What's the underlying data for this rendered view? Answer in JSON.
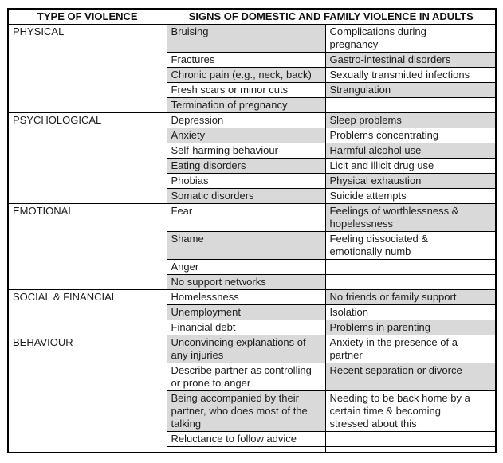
{
  "colors": {
    "shaded_cell": "#d9d9d9",
    "border": "#000000",
    "background": "#ffffff",
    "text": "#1d1d1d"
  },
  "header": {
    "type_col": "TYPE OF VIOLENCE",
    "signs_col": "SIGNS OF DOMESTIC AND FAMILY VIOLENCE IN ADULTS"
  },
  "sections": [
    {
      "type": "PHYSICAL",
      "rows": [
        {
          "sign1": "Bruising",
          "sign1_shaded": true,
          "sign2": "Complications during\npregnancy",
          "sign2_shaded": false
        },
        {
          "sign1": "Fractures",
          "sign1_shaded": false,
          "sign2": "Gastro-intestinal disorders",
          "sign2_shaded": true
        },
        {
          "sign1": "Chronic pain (e.g., neck, back)",
          "sign1_shaded": true,
          "sign2": "Sexually transmitted infections",
          "sign2_shaded": false
        },
        {
          "sign1": "Fresh scars or minor cuts",
          "sign1_shaded": false,
          "sign2": "Strangulation",
          "sign2_shaded": true
        },
        {
          "sign1": "Termination of pregnancy",
          "sign1_shaded": true,
          "sign2": "",
          "sign2_shaded": false
        }
      ]
    },
    {
      "type": "PSYCHOLOGICAL",
      "rows": [
        {
          "sign1": "Depression",
          "sign1_shaded": false,
          "sign2": "Sleep problems",
          "sign2_shaded": true
        },
        {
          "sign1": "Anxiety",
          "sign1_shaded": true,
          "sign2": "Problems concentrating",
          "sign2_shaded": false
        },
        {
          "sign1": "Self-harming behaviour",
          "sign1_shaded": false,
          "sign2": "Harmful alcohol use",
          "sign2_shaded": true
        },
        {
          "sign1": "Eating disorders",
          "sign1_shaded": true,
          "sign2": "Licit and illicit drug use",
          "sign2_shaded": false
        },
        {
          "sign1": "Phobias",
          "sign1_shaded": false,
          "sign2": "Physical exhaustion",
          "sign2_shaded": true
        },
        {
          "sign1": "Somatic disorders",
          "sign1_shaded": true,
          "sign2": "Suicide attempts",
          "sign2_shaded": false
        }
      ]
    },
    {
      "type": "EMOTIONAL",
      "rows": [
        {
          "sign1": "Fear",
          "sign1_shaded": false,
          "sign2": "Feelings of worthlessness &\nhopelessness",
          "sign2_shaded": true
        },
        {
          "sign1": "Shame",
          "sign1_shaded": true,
          "sign2": "Feeling dissociated &\nemotionally numb",
          "sign2_shaded": false
        },
        {
          "sign1": "Anger",
          "sign1_shaded": false,
          "sign2": "",
          "sign2_shaded": false
        },
        {
          "sign1": "No support networks",
          "sign1_shaded": true,
          "sign2": "",
          "sign2_shaded": false
        }
      ]
    },
    {
      "type": "SOCIAL & FINANCIAL",
      "rows": [
        {
          "sign1": "Homelessness",
          "sign1_shaded": false,
          "sign2": "No friends or family support",
          "sign2_shaded": true
        },
        {
          "sign1": "Unemployment",
          "sign1_shaded": true,
          "sign2": "Isolation",
          "sign2_shaded": false
        },
        {
          "sign1": "Financial debt",
          "sign1_shaded": false,
          "sign2": "Problems in parenting",
          "sign2_shaded": true
        }
      ]
    },
    {
      "type": "BEHAVIOUR",
      "rows": [
        {
          "sign1": "Unconvincing explanations of\nany injuries",
          "sign1_shaded": true,
          "sign2": "Anxiety in the presence of a\npartner",
          "sign2_shaded": false
        },
        {
          "sign1": "Describe partner as controlling\nor prone to anger",
          "sign1_shaded": false,
          "sign2": "Recent separation or divorce",
          "sign2_shaded": true
        },
        {
          "sign1": "Being accompanied by their\npartner, who does most of the\ntalking",
          "sign1_shaded": true,
          "sign2": "Needing to be back home by a\ncertain time & becoming\nstressed about this",
          "sign2_shaded": false
        },
        {
          "sign1": "Reluctance to follow advice",
          "sign1_shaded": false,
          "sign2": "",
          "sign2_shaded": false
        },
        {
          "sign1": "",
          "sign1_shaded": false,
          "sign2": "",
          "sign2_shaded": false,
          "spacer": true
        }
      ]
    }
  ]
}
